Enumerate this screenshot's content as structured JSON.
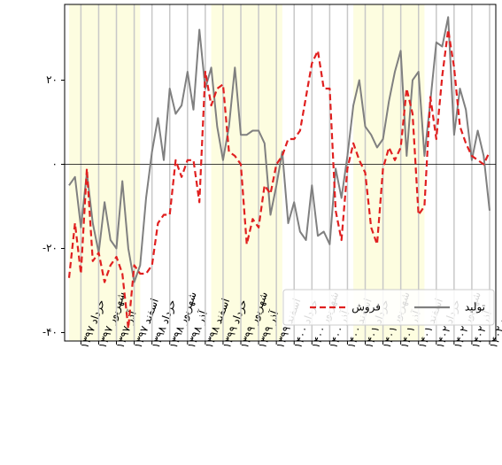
{
  "chart_data": {
    "type": "line",
    "categories": [
      null,
      null,
      "خرداد ۱۳۹۷",
      null,
      null,
      "شهریور ۱۳۹۷",
      null,
      null,
      "آذر ۱۳۹۷",
      null,
      null,
      "اسفند ۱۳۹۷",
      null,
      null,
      "خرداد ۱۳۹۸",
      null,
      null,
      "شهریور ۱۳۹۸",
      null,
      null,
      "آذر ۱۳۹۸",
      null,
      null,
      "اسفند ۱۳۹۸",
      null,
      null,
      "خرداد ۱۳۹۹",
      null,
      null,
      "شهریور ۱۳۹۹",
      null,
      null,
      "آذر ۱۳۹۹",
      null,
      null,
      "اسفند ۱۳۹۹",
      null,
      null,
      "خرداد ۱۴۰۰",
      null,
      null,
      "شهریور ۱۴۰۰",
      null,
      null,
      "آذر ۱۴۰۰",
      null,
      null,
      "اسفند ۱۴۰۰",
      null,
      null,
      "خرداد ۱۴۰۱",
      null,
      null,
      "شهریور ۱۴۰۱",
      null,
      null,
      "آذر ۱۴۰۱",
      null,
      null,
      "اسفند ۱۴۰۱",
      null,
      null,
      "خرداد ۱۴۰۲",
      null,
      null,
      "شهریور ۱۴۰۲",
      null,
      null,
      "آذر ۱۴۰۲",
      null,
      null,
      "اسفند ۱۴۰۲"
    ],
    "series": [
      {
        "name": "تولید",
        "color": "#808080",
        "dash": false,
        "values": [
          -5,
          -3,
          -15,
          -2,
          -14,
          -21,
          -9,
          -18,
          -20,
          -4,
          -20,
          -28,
          -24,
          -8,
          3,
          11,
          1,
          18,
          12,
          14,
          22,
          13,
          32,
          18,
          23,
          9,
          1,
          9,
          23,
          7,
          7,
          8,
          8,
          5,
          -12,
          -5,
          3,
          -14,
          -9,
          -16,
          -18,
          -5,
          -17,
          -16,
          -19,
          -1,
          -8,
          2,
          14,
          20,
          9,
          7,
          4,
          6,
          15,
          22,
          27,
          2,
          20,
          22,
          2,
          15,
          29,
          28,
          35,
          7,
          18,
          13,
          1,
          8,
          2,
          -11
        ]
      },
      {
        "name": "فروش",
        "color": "#e02020",
        "dash": true,
        "values": [
          -27,
          -14,
          -26,
          -1,
          -23,
          -21,
          -28,
          -24,
          -22,
          -26,
          -39,
          -24,
          -26,
          -26,
          -24,
          -14,
          -12,
          -12,
          1,
          -3,
          1,
          1,
          -9,
          22,
          14,
          18,
          19,
          3,
          2,
          0,
          -19,
          -13,
          -15,
          -5,
          -7,
          0,
          2,
          6,
          6,
          8,
          16,
          24,
          27,
          18,
          18,
          -11,
          -18,
          -1,
          5,
          1,
          -2,
          -15,
          -19,
          -1,
          4,
          1,
          4,
          18,
          12,
          -12,
          -10,
          16,
          6,
          21,
          32,
          23,
          9,
          5,
          2,
          1,
          0,
          3
        ]
      }
    ],
    "ylim": [
      -42,
      38
    ],
    "yticks": [
      {
        "value": 20,
        "label": "۲۰"
      },
      {
        "value": 0,
        "label": "۰"
      },
      {
        "value": -20,
        "label": "-۲۰"
      },
      {
        "value": -40,
        "label": "-۴۰"
      }
    ],
    "grid": true
  }
}
